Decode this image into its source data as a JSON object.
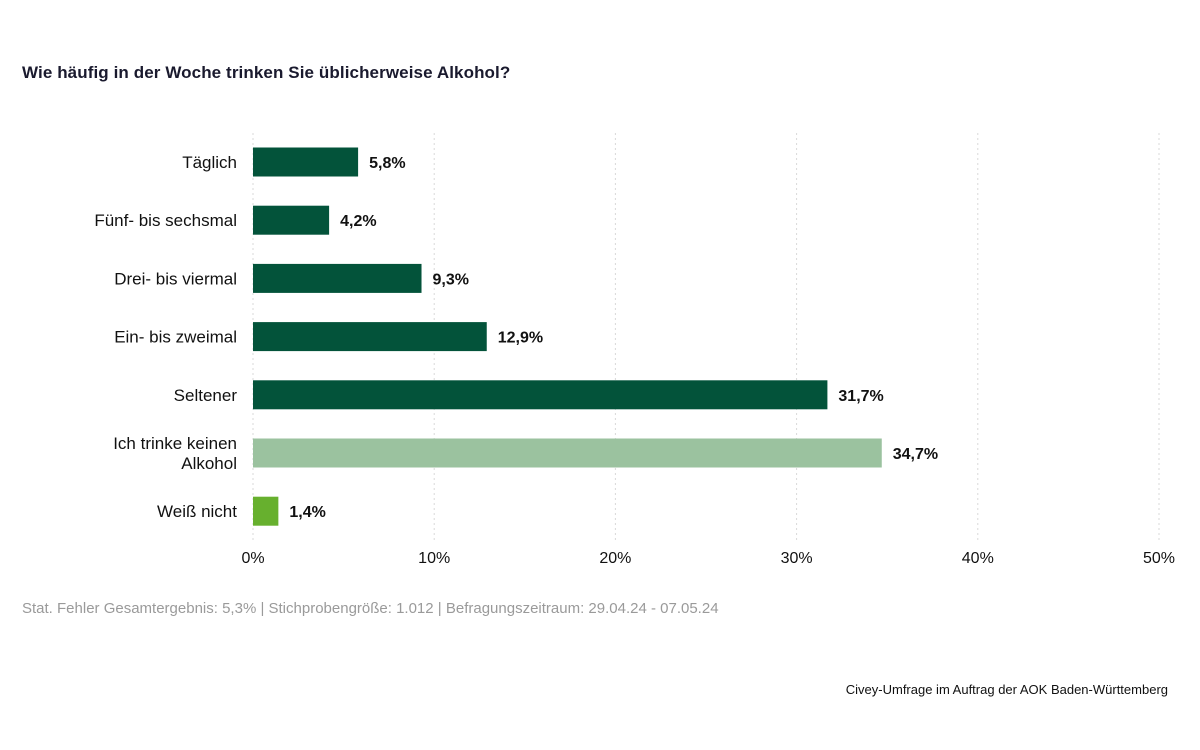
{
  "title": "Wie häufig in der Woche trinken Sie üblicherweise Alkohol?",
  "footnote": "Stat. Fehler Gesamtergebnis: 5,3% | Stichprobengröße: 1.012 | Befragungszeitraum: 29.04.24 - 07.05.24",
  "source": "Civey-Umfrage im Auftrag der AOK Baden-Württemberg",
  "colors": {
    "dark_green": "#03533a",
    "light_green": "#9bc29f",
    "bright_green": "#67b02e",
    "grid": "#d9d9d9",
    "text": "#111111"
  },
  "chart_data": {
    "type": "bar",
    "orientation": "horizontal",
    "categories": [
      "Täglich",
      "Fünf- bis sechsmal",
      "Drei- bis viermal",
      "Ein- bis zweimal",
      "Seltener",
      "Ich trinke keinen Alkohol",
      "Weiß nicht"
    ],
    "values": [
      5.8,
      4.2,
      9.3,
      12.9,
      31.7,
      34.7,
      1.4
    ],
    "value_labels": [
      "5,8%",
      "4,2%",
      "9,3%",
      "12,9%",
      "31,7%",
      "34,7%",
      "1,4%"
    ],
    "bar_colors": [
      "#03533a",
      "#03533a",
      "#03533a",
      "#03533a",
      "#03533a",
      "#9bc29f",
      "#67b02e"
    ],
    "xlim": [
      0,
      50
    ],
    "xticks": [
      0,
      10,
      20,
      30,
      40,
      50
    ],
    "xtick_labels": [
      "0%",
      "10%",
      "20%",
      "30%",
      "40%",
      "50%"
    ],
    "grid": true,
    "grid_style": "dotted vertical",
    "legend": "none"
  }
}
